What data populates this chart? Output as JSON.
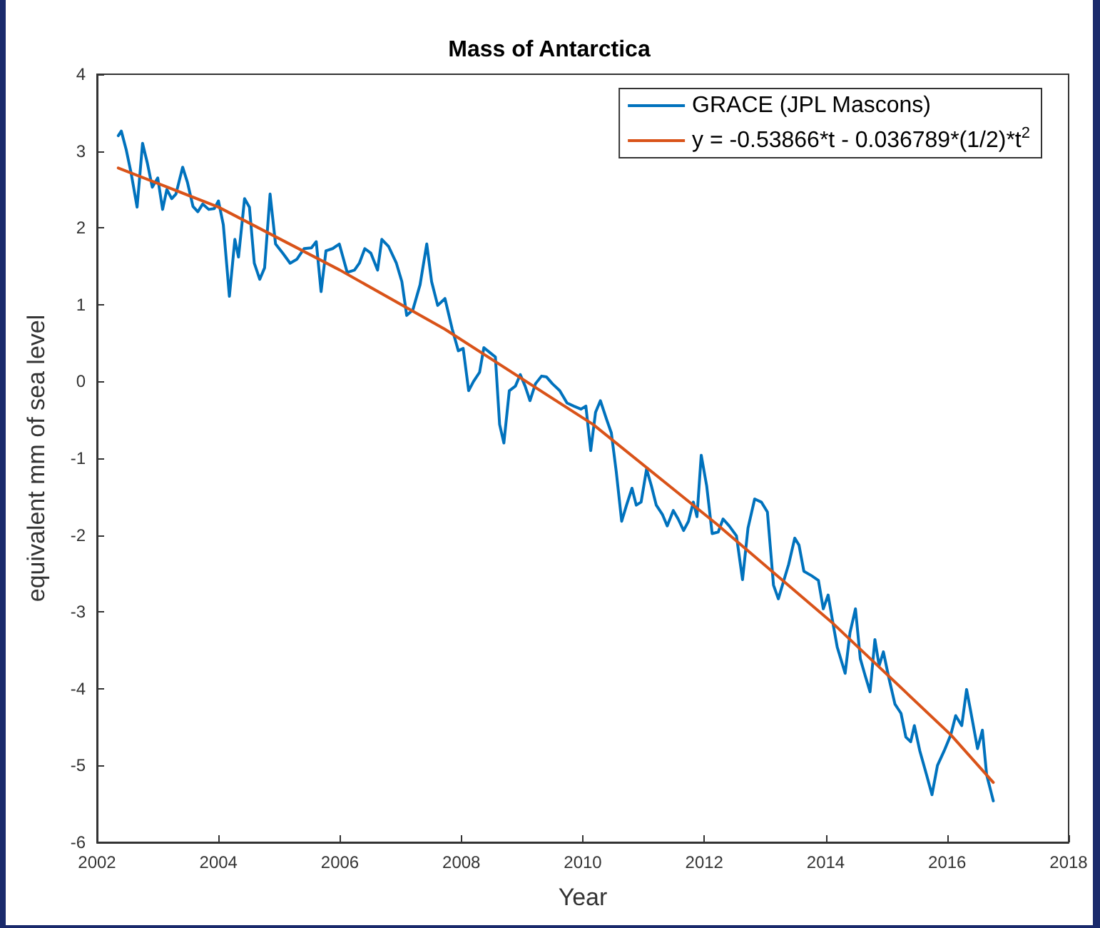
{
  "chart_data": {
    "type": "line",
    "title": "Mass of Antarctica",
    "xlabel": "Year",
    "ylabel": "equivalent mm of sea level",
    "xlim": [
      2002,
      2018
    ],
    "xticks": [
      2002,
      2004,
      2006,
      2008,
      2010,
      2012,
      2014,
      2016,
      2018
    ],
    "ylim": [
      -6,
      4
    ],
    "yticks": [
      -6,
      -5,
      -4,
      -3,
      -2,
      -1,
      0,
      1,
      2,
      3,
      4
    ],
    "grid": false,
    "legend": "top right",
    "marker": "none",
    "line_style": "solid",
    "series": [
      {
        "name": "GRACE (JPL Mascons)",
        "color": "#0072bd",
        "x": [
          2002.35,
          2002.4,
          2002.48,
          2002.56,
          2002.66,
          2002.75,
          2002.83,
          2002.91,
          2003.0,
          2003.08,
          2003.15,
          2003.23,
          2003.3,
          2003.41,
          2003.49,
          2003.58,
          2003.66,
          2003.74,
          2003.84,
          2003.93,
          2004.0,
          2004.08,
          2004.18,
          2004.27,
          2004.33,
          2004.43,
          2004.51,
          2004.59,
          2004.68,
          2004.76,
          2004.85,
          2004.94,
          2005.06,
          2005.18,
          2005.29,
          2005.41,
          2005.53,
          2005.61,
          2005.69,
          2005.77,
          2005.88,
          2005.99,
          2006.12,
          2006.24,
          2006.32,
          2006.41,
          2006.51,
          2006.62,
          2006.69,
          2006.8,
          2006.93,
          2007.02,
          2007.1,
          2007.2,
          2007.32,
          2007.43,
          2007.51,
          2007.61,
          2007.73,
          2007.85,
          2007.95,
          2008.03,
          2008.12,
          2008.2,
          2008.3,
          2008.37,
          2008.48,
          2008.56,
          2008.63,
          2008.7,
          2008.79,
          2008.89,
          2008.97,
          2009.05,
          2009.13,
          2009.22,
          2009.32,
          2009.4,
          2009.5,
          2009.62,
          2009.74,
          2009.85,
          2009.97,
          2010.05,
          2010.13,
          2010.21,
          2010.29,
          2010.39,
          2010.47,
          2010.55,
          2010.64,
          2010.72,
          2010.81,
          2010.88,
          2010.96,
          2011.05,
          2011.13,
          2011.21,
          2011.31,
          2011.39,
          2011.49,
          2011.57,
          2011.66,
          2011.74,
          2011.82,
          2011.88,
          2011.95,
          2012.04,
          2012.13,
          2012.23,
          2012.31,
          2012.41,
          2012.53,
          2012.63,
          2012.72,
          2012.83,
          2012.94,
          2013.04,
          2013.14,
          2013.22,
          2013.31,
          2013.39,
          2013.49,
          2013.56,
          2013.64,
          2013.77,
          2013.88,
          2013.96,
          2014.04,
          2014.12,
          2014.19,
          2014.32,
          2014.4,
          2014.49,
          2014.57,
          2014.65,
          2014.73,
          2014.81,
          2014.88,
          2014.95,
          2015.04,
          2015.14,
          2015.24,
          2015.32,
          2015.4,
          2015.46,
          2015.55,
          2015.66,
          2015.75,
          2015.84,
          2015.95,
          2016.06,
          2016.14,
          2016.24,
          2016.32,
          2016.38,
          2016.5,
          2016.58,
          2016.65,
          2016.76
        ],
        "values": [
          3.2,
          3.26,
          3.02,
          2.72,
          2.27,
          3.1,
          2.84,
          2.53,
          2.65,
          2.24,
          2.5,
          2.38,
          2.44,
          2.79,
          2.59,
          2.28,
          2.21,
          2.31,
          2.24,
          2.25,
          2.35,
          2.04,
          1.11,
          1.85,
          1.62,
          2.38,
          2.27,
          1.54,
          1.33,
          1.48,
          2.44,
          1.79,
          1.67,
          1.54,
          1.59,
          1.73,
          1.74,
          1.82,
          1.17,
          1.7,
          1.73,
          1.79,
          1.42,
          1.45,
          1.54,
          1.73,
          1.67,
          1.45,
          1.85,
          1.76,
          1.54,
          1.3,
          0.86,
          0.93,
          1.26,
          1.79,
          1.3,
          0.99,
          1.08,
          0.68,
          0.4,
          0.43,
          -0.12,
          0.0,
          0.12,
          0.44,
          0.37,
          0.32,
          -0.56,
          -0.8,
          -0.12,
          -0.06,
          0.09,
          -0.06,
          -0.25,
          -0.03,
          0.07,
          0.06,
          -0.03,
          -0.12,
          -0.28,
          -0.32,
          -0.36,
          -0.32,
          -0.9,
          -0.4,
          -0.25,
          -0.49,
          -0.67,
          -1.17,
          -1.82,
          -1.61,
          -1.39,
          -1.61,
          -1.57,
          -1.14,
          -1.36,
          -1.61,
          -1.73,
          -1.88,
          -1.68,
          -1.79,
          -1.94,
          -1.82,
          -1.57,
          -1.76,
          -0.96,
          -1.36,
          -1.98,
          -1.96,
          -1.79,
          -1.88,
          -2.01,
          -2.58,
          -1.91,
          -1.53,
          -1.57,
          -1.7,
          -2.65,
          -2.83,
          -2.59,
          -2.38,
          -2.04,
          -2.13,
          -2.47,
          -2.53,
          -2.59,
          -2.96,
          -2.78,
          -3.15,
          -3.46,
          -3.8,
          -3.27,
          -2.96,
          -3.61,
          -3.83,
          -4.04,
          -3.36,
          -3.7,
          -3.52,
          -3.86,
          -4.2,
          -4.32,
          -4.63,
          -4.69,
          -4.48,
          -4.81,
          -5.12,
          -5.38,
          -5.0,
          -4.81,
          -4.6,
          -4.35,
          -4.48,
          -4.01,
          -4.26,
          -4.78,
          -4.54,
          -5.12,
          -5.46
        ]
      },
      {
        "name": "y = -0.53866*t - 0.036789*(1/2)*t$^{2}$",
        "color": "#d95319",
        "x": [
          2002.35,
          2004,
          2006,
          2007.73,
          2010.17,
          2012.21,
          2014.12,
          2016.06,
          2016.76
        ],
        "values": [
          2.78,
          2.27,
          1.45,
          0.68,
          -0.56,
          -1.86,
          -3.15,
          -4.6,
          -5.22
        ]
      }
    ]
  }
}
